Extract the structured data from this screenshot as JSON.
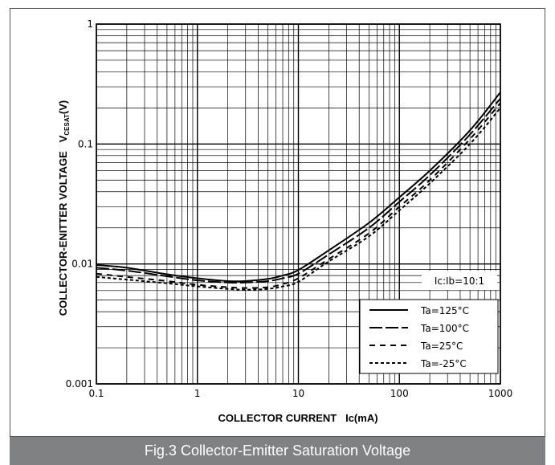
{
  "caption": "Fig.3 Collector-Emitter Saturation Voltage",
  "chart_data": {
    "type": "line",
    "title": "",
    "xlabel": "COLLECTOR CURRENT   Ic(mA)",
    "ylabel_main": "COLLECTOR-ENITTER VOLTAGE   V",
    "ylabel_sub": "CESAT",
    "ylabel_unit": "(V)",
    "xscale": "log",
    "yscale": "log",
    "xlim": [
      0.1,
      1000
    ],
    "ylim": [
      0.001,
      1
    ],
    "grid": true,
    "x_ticks": [
      "0.1",
      "1",
      "10",
      "100",
      "1000"
    ],
    "y_ticks": [
      "0.001",
      "0.01",
      "0.1",
      "1"
    ],
    "annotation": "Ic:Ib=10:1",
    "legend_position": "bottom-right",
    "series": [
      {
        "name": "Ta=125°C",
        "style": "solid",
        "x": [
          0.1,
          0.2,
          0.5,
          1,
          2,
          3,
          5,
          7,
          10,
          20,
          50,
          100,
          200,
          500,
          1000
        ],
        "y": [
          0.0098,
          0.0093,
          0.0082,
          0.0076,
          0.0072,
          0.0072,
          0.0075,
          0.008,
          0.0089,
          0.013,
          0.022,
          0.036,
          0.06,
          0.13,
          0.27
        ]
      },
      {
        "name": "Ta=100°C",
        "style": "longdash",
        "x": [
          0.1,
          0.2,
          0.5,
          1,
          2,
          3,
          5,
          7,
          10,
          20,
          50,
          100,
          200,
          500,
          1000
        ],
        "y": [
          0.0093,
          0.0088,
          0.0079,
          0.0073,
          0.007,
          0.007,
          0.0072,
          0.0076,
          0.0083,
          0.012,
          0.02,
          0.033,
          0.055,
          0.12,
          0.24
        ]
      },
      {
        "name": "Ta=25°C",
        "style": "dash",
        "x": [
          0.1,
          0.2,
          0.5,
          1,
          2,
          3,
          5,
          7,
          10,
          20,
          50,
          100,
          200,
          500,
          1000
        ],
        "y": [
          0.0083,
          0.0078,
          0.0072,
          0.0067,
          0.0064,
          0.0063,
          0.0064,
          0.0068,
          0.0076,
          0.011,
          0.018,
          0.03,
          0.05,
          0.11,
          0.22
        ]
      },
      {
        "name": "Ta=-25°C",
        "style": "shortdash",
        "x": [
          0.1,
          0.2,
          0.5,
          1,
          2,
          3,
          5,
          7,
          10,
          20,
          50,
          100,
          200,
          500,
          1000
        ],
        "y": [
          0.0078,
          0.0074,
          0.0069,
          0.0065,
          0.0062,
          0.0061,
          0.0062,
          0.0065,
          0.0071,
          0.0105,
          0.017,
          0.028,
          0.047,
          0.1,
          0.2
        ]
      }
    ]
  }
}
